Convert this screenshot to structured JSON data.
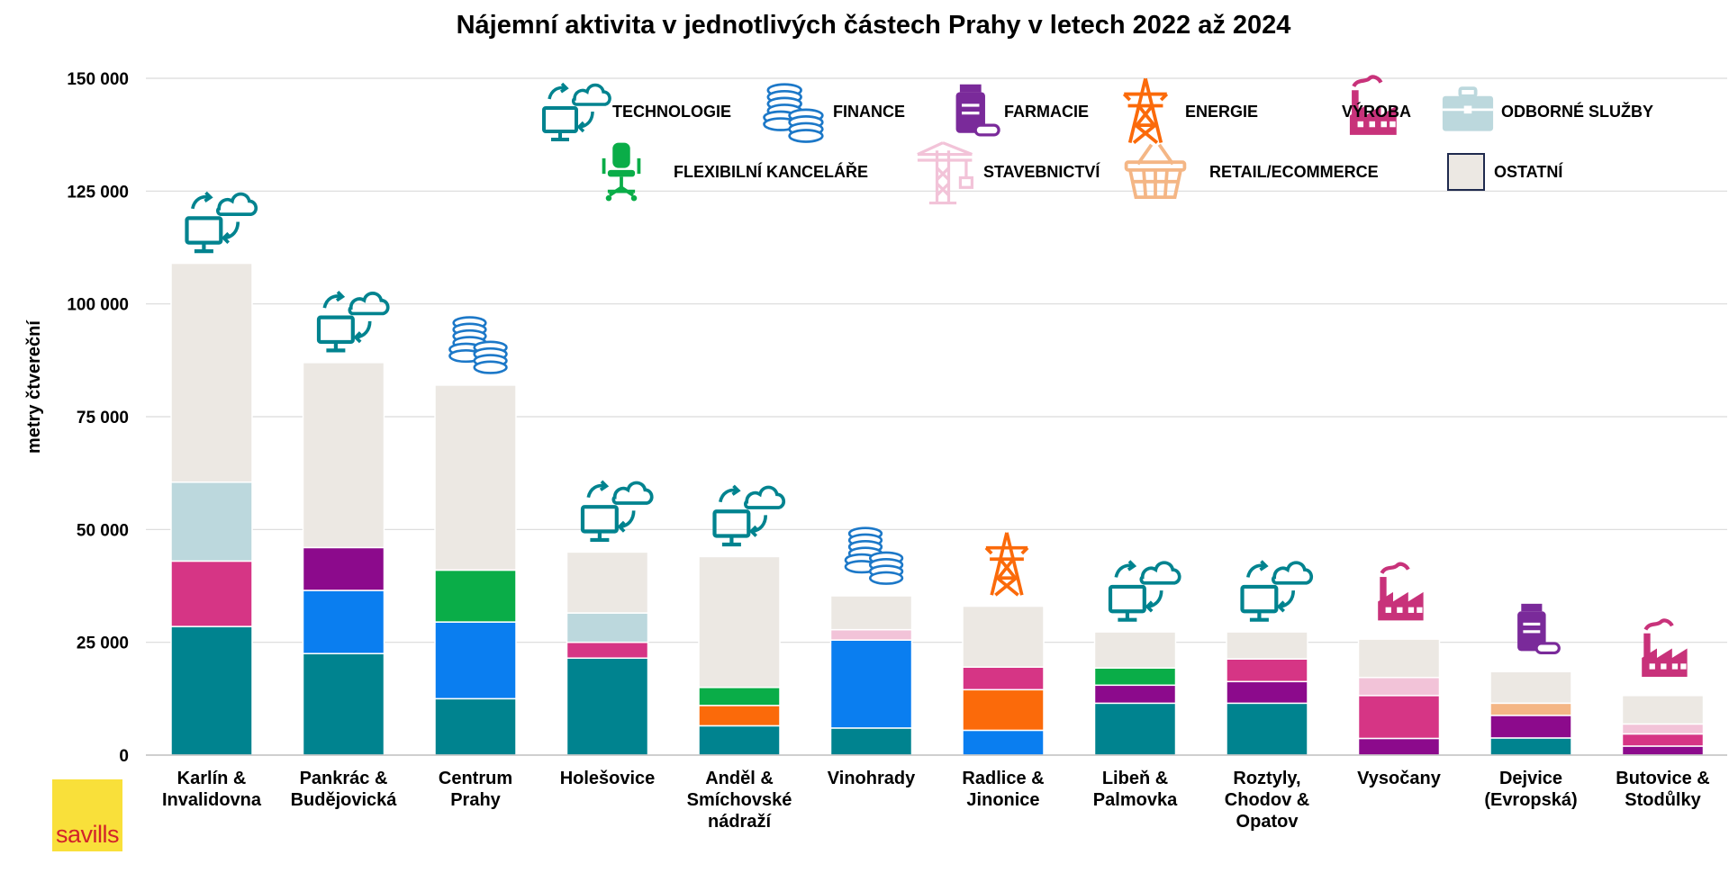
{
  "chart_data": {
    "type": "bar",
    "stacked": true,
    "title": "Nájemní aktivita v jednotlivých částech Prahy v letech 2022 až 2024",
    "ylabel": "metry čtvereční",
    "ylim": [
      0,
      150000
    ],
    "yticks": [
      0,
      25000,
      50000,
      75000,
      100000,
      125000,
      150000
    ],
    "ytick_labels": [
      "0",
      "25 000",
      "50 000",
      "75 000",
      "100 000",
      "125 000",
      "150 000"
    ],
    "grid": true,
    "legend_position": "top",
    "categories": [
      [
        "Karlín &",
        "Invalidovna"
      ],
      [
        "Pankrác &",
        "Budějovická"
      ],
      [
        "Centrum",
        "Prahy"
      ],
      [
        "Holešovice"
      ],
      [
        "Anděl &",
        "Smíchovské",
        "nádraží"
      ],
      [
        "Vinohrady"
      ],
      [
        "Radlice &",
        "Jinonice"
      ],
      [
        "Libeň &",
        "Palmovka"
      ],
      [
        "Roztyly,",
        "Chodov &",
        "Opatov"
      ],
      [
        "Vysočany"
      ],
      [
        "Dejvice",
        "(Evropská)"
      ],
      [
        "Butovice &",
        "Stodůlky"
      ]
    ],
    "series": [
      {
        "name": "TECHNOLOGIE",
        "color": "#00838f",
        "icon": "monitor-cloud-icon",
        "values": [
          28500,
          22500,
          12500,
          21500,
          6500,
          6000,
          0,
          11500,
          11500,
          0,
          3800,
          0
        ]
      },
      {
        "name": "FINANCE",
        "color": "#0a7ef0",
        "icon": "coins-icon",
        "values": [
          0,
          14000,
          17000,
          0,
          0,
          19500,
          5500,
          0,
          0,
          0,
          0,
          0
        ]
      },
      {
        "name": "FARMACIE",
        "color": "#8c0a8c",
        "icon": "pill-bottle-icon",
        "values": [
          0,
          9500,
          0,
          0,
          0,
          0,
          0,
          4000,
          4800,
          3700,
          5000,
          2000
        ]
      },
      {
        "name": "ENERGIE",
        "color": "#fb6a0a",
        "icon": "power-pylon-icon",
        "values": [
          0,
          0,
          0,
          0,
          4500,
          0,
          9000,
          0,
          0,
          0,
          0,
          0
        ]
      },
      {
        "name": "VÝROBA",
        "color": "#d63585",
        "icon": "factory-icon",
        "values": [
          14500,
          0,
          0,
          3500,
          0,
          0,
          5000,
          0,
          5000,
          9500,
          0,
          2700
        ]
      },
      {
        "name": "ODBORNÉ SLUŽBY",
        "color": "#bcd8dd",
        "icon": "briefcase-icon",
        "values": [
          17500,
          0,
          0,
          6500,
          0,
          0,
          0,
          0,
          0,
          0,
          0,
          0
        ]
      },
      {
        "name": "FLEXIBILNÍ KANCELÁŘE",
        "color": "#0aad48",
        "icon": "office-chair-icon",
        "values": [
          0,
          0,
          11500,
          0,
          4000,
          0,
          0,
          3800,
          0,
          0,
          0,
          0
        ]
      },
      {
        "name": "STAVEBNICTVÍ",
        "color": "#f2c3d8",
        "icon": "crane-icon",
        "values": [
          0,
          0,
          0,
          0,
          0,
          2300,
          0,
          0,
          0,
          4000,
          0,
          2200
        ]
      },
      {
        "name": "RETAIL/ECOMMERCE",
        "color": "#f4b685",
        "icon": "basket-icon",
        "values": [
          0,
          0,
          0,
          0,
          0,
          0,
          0,
          0,
          0,
          0,
          2700,
          0
        ]
      },
      {
        "name": "OSTATNÍ",
        "color": "#ece8e3",
        "icon": "square-swatch-icon",
        "values": [
          48500,
          41000,
          41000,
          13500,
          29000,
          7500,
          13500,
          8000,
          6000,
          8500,
          7000,
          6300
        ]
      }
    ],
    "top_icons": [
      "monitor-cloud-icon",
      "monitor-cloud-icon",
      "coins-icon",
      "monitor-cloud-icon",
      "monitor-cloud-icon",
      "coins-icon",
      "power-pylon-icon",
      "monitor-cloud-icon",
      "monitor-cloud-icon",
      "factory-icon",
      "pill-bottle-icon",
      "factory-icon"
    ]
  },
  "logo": {
    "text": "savills"
  }
}
